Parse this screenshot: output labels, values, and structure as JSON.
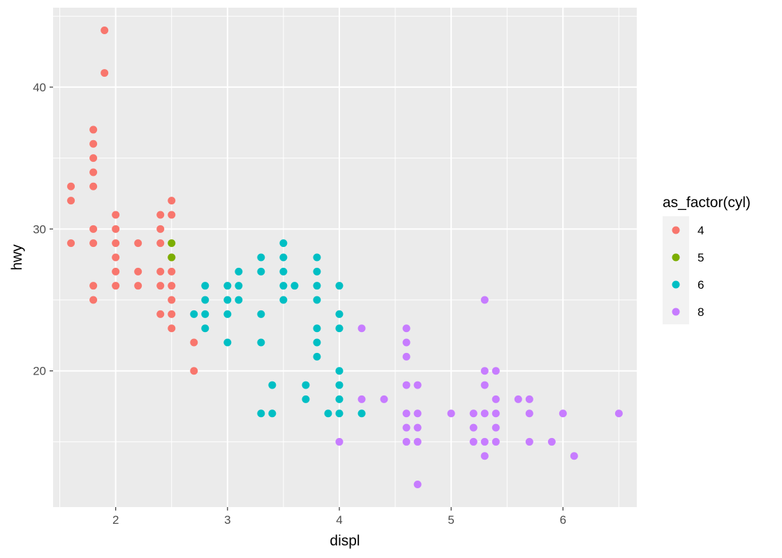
{
  "chart_data": {
    "type": "scatter",
    "title": "",
    "xlabel": "displ",
    "ylabel": "hwy",
    "xlim": [
      1.44,
      6.66
    ],
    "ylim": [
      10.4,
      45.6
    ],
    "x_ticks": [
      2,
      3,
      4,
      5,
      6
    ],
    "y_ticks": [
      20,
      30,
      40
    ],
    "x_tick_labels": [
      "2",
      "3",
      "4",
      "5",
      "6"
    ],
    "y_tick_labels": [
      "20",
      "30",
      "40"
    ],
    "grid": true,
    "legend": {
      "title": "as_factor(cyl)",
      "position": "right"
    },
    "series": [
      {
        "name": "4",
        "color": "#F8766D",
        "points": [
          [
            1.6,
            33
          ],
          [
            1.6,
            32
          ],
          [
            1.6,
            29
          ],
          [
            1.8,
            37
          ],
          [
            1.8,
            36
          ],
          [
            1.8,
            35
          ],
          [
            1.8,
            34
          ],
          [
            1.8,
            33
          ],
          [
            1.8,
            30
          ],
          [
            1.8,
            29
          ],
          [
            1.8,
            26
          ],
          [
            1.8,
            25
          ],
          [
            1.9,
            44
          ],
          [
            1.9,
            41
          ],
          [
            2.0,
            31
          ],
          [
            2.0,
            30
          ],
          [
            2.0,
            29
          ],
          [
            2.0,
            28
          ],
          [
            2.0,
            27
          ],
          [
            2.0,
            26
          ],
          [
            2.2,
            29
          ],
          [
            2.2,
            27
          ],
          [
            2.2,
            26
          ],
          [
            2.4,
            31
          ],
          [
            2.4,
            30
          ],
          [
            2.4,
            29
          ],
          [
            2.4,
            27
          ],
          [
            2.4,
            26
          ],
          [
            2.4,
            24
          ],
          [
            2.5,
            32
          ],
          [
            2.5,
            31
          ],
          [
            2.5,
            28
          ],
          [
            2.5,
            27
          ],
          [
            2.5,
            26
          ],
          [
            2.5,
            25
          ],
          [
            2.5,
            24
          ],
          [
            2.5,
            23
          ],
          [
            2.7,
            22
          ],
          [
            2.7,
            20
          ]
        ]
      },
      {
        "name": "5",
        "color": "#7CAE00",
        "points": [
          [
            2.5,
            29
          ],
          [
            2.5,
            28
          ]
        ]
      },
      {
        "name": "6",
        "color": "#00BFC4",
        "points": [
          [
            2.7,
            24
          ],
          [
            2.8,
            26
          ],
          [
            2.8,
            25
          ],
          [
            2.8,
            24
          ],
          [
            2.8,
            23
          ],
          [
            3.0,
            26
          ],
          [
            3.0,
            25
          ],
          [
            3.0,
            24
          ],
          [
            3.0,
            22
          ],
          [
            3.1,
            27
          ],
          [
            3.1,
            26
          ],
          [
            3.1,
            25
          ],
          [
            3.3,
            28
          ],
          [
            3.3,
            27
          ],
          [
            3.3,
            24
          ],
          [
            3.3,
            22
          ],
          [
            3.3,
            17
          ],
          [
            3.4,
            19
          ],
          [
            3.4,
            17
          ],
          [
            3.5,
            29
          ],
          [
            3.5,
            28
          ],
          [
            3.5,
            27
          ],
          [
            3.5,
            26
          ],
          [
            3.5,
            25
          ],
          [
            3.6,
            26
          ],
          [
            3.7,
            19
          ],
          [
            3.7,
            18
          ],
          [
            3.8,
            28
          ],
          [
            3.8,
            27
          ],
          [
            3.8,
            26
          ],
          [
            3.8,
            25
          ],
          [
            3.8,
            23
          ],
          [
            3.8,
            22
          ],
          [
            3.8,
            21
          ],
          [
            3.9,
            17
          ],
          [
            4.0,
            26
          ],
          [
            4.0,
            24
          ],
          [
            4.0,
            23
          ],
          [
            4.0,
            20
          ],
          [
            4.0,
            19
          ],
          [
            4.0,
            18
          ],
          [
            4.0,
            17
          ],
          [
            4.2,
            17
          ]
        ]
      },
      {
        "name": "8",
        "color": "#C77CFF",
        "points": [
          [
            4.0,
            15
          ],
          [
            4.2,
            23
          ],
          [
            4.2,
            18
          ],
          [
            4.4,
            18
          ],
          [
            4.6,
            23
          ],
          [
            4.6,
            22
          ],
          [
            4.6,
            21
          ],
          [
            4.6,
            19
          ],
          [
            4.6,
            17
          ],
          [
            4.6,
            16
          ],
          [
            4.6,
            15
          ],
          [
            4.7,
            19
          ],
          [
            4.7,
            17
          ],
          [
            4.7,
            16
          ],
          [
            4.7,
            15
          ],
          [
            4.7,
            12
          ],
          [
            5.0,
            17
          ],
          [
            5.2,
            17
          ],
          [
            5.2,
            16
          ],
          [
            5.2,
            15
          ],
          [
            5.3,
            25
          ],
          [
            5.3,
            20
          ],
          [
            5.3,
            19
          ],
          [
            5.3,
            17
          ],
          [
            5.3,
            15
          ],
          [
            5.3,
            14
          ],
          [
            5.4,
            20
          ],
          [
            5.4,
            18
          ],
          [
            5.4,
            17
          ],
          [
            5.4,
            16
          ],
          [
            5.4,
            15
          ],
          [
            5.6,
            18
          ],
          [
            5.7,
            18
          ],
          [
            5.7,
            17
          ],
          [
            5.7,
            15
          ],
          [
            5.9,
            15
          ],
          [
            6.0,
            17
          ],
          [
            6.1,
            14
          ],
          [
            6.5,
            17
          ]
        ]
      }
    ]
  }
}
